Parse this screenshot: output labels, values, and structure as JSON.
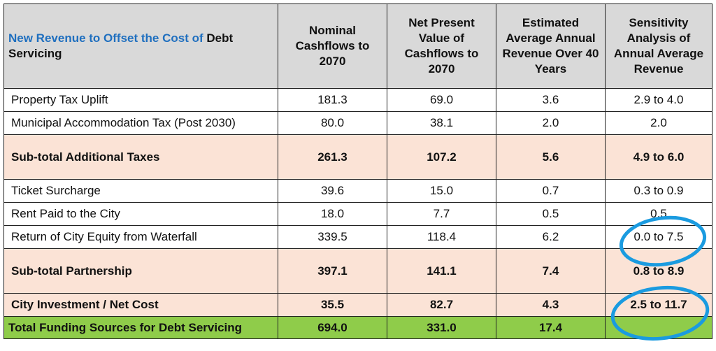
{
  "table": {
    "title_blue": "New Revenue to Offset the Cost of",
    "title_black": "Debt Servicing",
    "columns": [
      "Nominal Cashflows to 2070",
      "Net Present Value of Cashflows to 2070",
      "Estimated Average Annual Revenue Over 40 Years",
      "Sensitivity Analysis of Annual Average Revenue"
    ],
    "rows": [
      {
        "kind": "normal",
        "cells": [
          "Property Tax Uplift",
          "181.3",
          "69.0",
          "3.6",
          "2.9 to 4.0"
        ]
      },
      {
        "kind": "normal",
        "cells": [
          "Municipal Accommodation Tax (Post 2030)",
          "80.0",
          "38.1",
          "2.0",
          "2.0"
        ]
      },
      {
        "kind": "subtotal",
        "cells": [
          "Sub-total Additional Taxes",
          "261.3",
          "107.2",
          "5.6",
          "4.9 to 6.0"
        ]
      },
      {
        "kind": "normal",
        "cells": [
          "Ticket Surcharge",
          "39.6",
          "15.0",
          "0.7",
          "0.3 to 0.9"
        ]
      },
      {
        "kind": "normal",
        "cells": [
          "Rent Paid to the City",
          "18.0",
          "7.7",
          "0.5",
          "0.5"
        ]
      },
      {
        "kind": "normal",
        "cells": [
          "Return of City Equity from Waterfall",
          "339.5",
          "118.4",
          "6.2",
          "0.0 to 7.5"
        ]
      },
      {
        "kind": "subtotal",
        "cells": [
          "Sub-total Partnership",
          "397.1",
          "141.1",
          "7.4",
          "0.8 to 8.9"
        ]
      },
      {
        "kind": "subtotal",
        "cells": [
          "City Investment / Net Cost",
          "35.5",
          "82.7",
          "4.3",
          "2.5 to 11.7"
        ]
      },
      {
        "kind": "total",
        "cells": [
          "Total Funding Sources for Debt Servicing",
          "694.0",
          "331.0",
          "17.4"
        ]
      }
    ]
  }
}
